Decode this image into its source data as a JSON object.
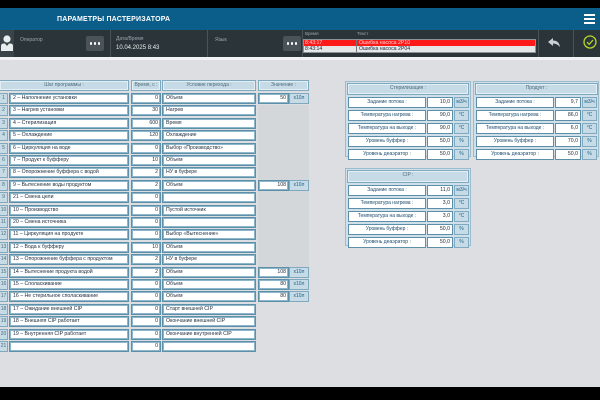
{
  "header": {
    "title": "ПАРАМЕТРЫ ПАСТЕРИЗАТОРА"
  },
  "infobar": {
    "operator_label": "Оператор",
    "datetime_label": "Дата/Время",
    "datetime_value": "10.04.2025 8:43",
    "language_label": "Язык",
    "alarms": {
      "time_header": "Время",
      "text_header": "Текст",
      "rows": [
        {
          "time": "8:43:17",
          "text": "Ошибка насоса 2P10",
          "active": true
        },
        {
          "time": "8:43:14",
          "text": "Ошибка насоса 2P04",
          "active": false
        }
      ]
    }
  },
  "colors": {
    "titlebar": "#0b5d8a",
    "infobar": "#2b3438",
    "alarm_active": "#ff1a1a",
    "ack_icon": "#b5d62a",
    "table_border": "#5d8fa8",
    "header_fill": "#c6dbe6"
  },
  "steps_table": {
    "headers": {
      "step": "Шаг программы :",
      "time": "Время, с :",
      "condition": "Условие перехода :",
      "value": "Значение :"
    },
    "rows": [
      {
        "n": "1",
        "step": "2 – Наполнение установки",
        "time": "0",
        "cond": "Объем",
        "value": "50",
        "unit": "x10л"
      },
      {
        "n": "2",
        "step": "3 – Нагрев установки",
        "time": "30",
        "cond": "Нагрев",
        "value": null,
        "unit": null
      },
      {
        "n": "3",
        "step": "4 – Стерилизация",
        "time": "600",
        "cond": "Время",
        "value": null,
        "unit": null
      },
      {
        "n": "4",
        "step": "5 – Охлаждение",
        "time": "120",
        "cond": "Охлаждение",
        "value": null,
        "unit": null
      },
      {
        "n": "5",
        "step": "6 – Циркуляция на воде",
        "time": "0",
        "cond": "Выбор «Производство»",
        "value": null,
        "unit": null
      },
      {
        "n": "6",
        "step": "7 – Продукт к буфферу",
        "time": "10",
        "cond": "Объем",
        "value": null,
        "unit": null
      },
      {
        "n": "7",
        "step": "8 – Опорожнение буффера с водой",
        "time": "2",
        "cond": "НУ в буфере",
        "value": null,
        "unit": null
      },
      {
        "n": "8",
        "step": "9 – Вытеснение воды продуктом",
        "time": "2",
        "cond": "Объем",
        "value": "108",
        "unit": "x10л"
      },
      {
        "n": "9",
        "step": "21 – Смена цели",
        "time": "0",
        "cond": "",
        "value": null,
        "unit": null
      },
      {
        "n": "10",
        "step": "10 – Производство",
        "time": "0",
        "cond": "Пустой источник",
        "value": null,
        "unit": null
      },
      {
        "n": "11",
        "step": "20 – Смена источника",
        "time": "0",
        "cond": "",
        "value": null,
        "unit": null
      },
      {
        "n": "12",
        "step": "11 – Циркуляция на продукте",
        "time": "0",
        "cond": "Выбор «Вытеснение»",
        "value": null,
        "unit": null
      },
      {
        "n": "13",
        "step": "12 – Вода к буфферу",
        "time": "10",
        "cond": "Объем",
        "value": null,
        "unit": null
      },
      {
        "n": "14",
        "step": "13 – Опорожнение буффера с продуктом",
        "time": "2",
        "cond": "НУ в буфере",
        "value": null,
        "unit": null
      },
      {
        "n": "15",
        "step": "14 – Вытеснение продукта водой",
        "time": "2",
        "cond": "Объем",
        "value": "108",
        "unit": "x10л"
      },
      {
        "n": "16",
        "step": "15 – Споласкивание",
        "time": "0",
        "cond": "Объем",
        "value": "80",
        "unit": "x10л"
      },
      {
        "n": "17",
        "step": "16 – Не стерильное споласкивание",
        "time": "0",
        "cond": "Объем",
        "value": "80",
        "unit": "x10л"
      },
      {
        "n": "18",
        "step": "17 – Ожидание внешней CIP",
        "time": "0",
        "cond": "Старт внешней CIP",
        "value": null,
        "unit": null
      },
      {
        "n": "19",
        "step": "18 – Внешняя CIP работает",
        "time": "0",
        "cond": "Окончание внешней CIP",
        "value": null,
        "unit": null
      },
      {
        "n": "20",
        "step": "19 – Внутренняя CIP работает",
        "time": "0",
        "cond": "Окончание внутренней CIP",
        "value": null,
        "unit": null
      },
      {
        "n": "21",
        "step": "",
        "time": "0",
        "cond": "",
        "value": null,
        "unit": null
      }
    ]
  },
  "panels": {
    "sterilization": {
      "title": "Стерилизация :",
      "rows": [
        {
          "label": "Задание потока :",
          "value": "10,0",
          "unit": "м3/ч"
        },
        {
          "label": "Температура нагрева :",
          "value": "90,0",
          "unit": "°C"
        },
        {
          "label": "Температура на выходе :",
          "value": "90,0",
          "unit": "°C"
        },
        {
          "label": "Уровень буффер :",
          "value": "50,0",
          "unit": "%"
        },
        {
          "label": "Уровень деаэратор :",
          "value": "50,0",
          "unit": "%"
        }
      ]
    },
    "product": {
      "title": "Продукт :",
      "rows": [
        {
          "label": "Задание потока :",
          "value": "9,7",
          "unit": "м3/ч"
        },
        {
          "label": "Температура нагрева :",
          "value": "86,0",
          "unit": "°C"
        },
        {
          "label": "Температура на выходе :",
          "value": "6,0",
          "unit": "°C"
        },
        {
          "label": "Уровень буффер :",
          "value": "70,0",
          "unit": "%"
        },
        {
          "label": "Уровень деаэратор :",
          "value": "50,0",
          "unit": "%"
        }
      ]
    },
    "cip": {
      "title": "CIP :",
      "rows": [
        {
          "label": "Задание потока :",
          "value": "11,0",
          "unit": "м3/ч"
        },
        {
          "label": "Температура нагрева :",
          "value": "3,0",
          "unit": "°C"
        },
        {
          "label": "Температура на выходе :",
          "value": "3,0",
          "unit": "°C"
        },
        {
          "label": "Уровень буффер :",
          "value": "50,0",
          "unit": "%"
        },
        {
          "label": "Уровень деаэратор :",
          "value": "50,0",
          "unit": "%"
        }
      ]
    }
  }
}
